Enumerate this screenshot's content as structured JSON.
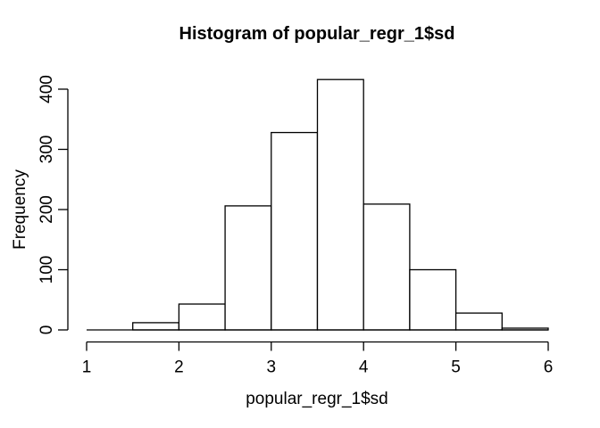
{
  "figure": {
    "background": "#ffffff"
  },
  "chart_data": {
    "type": "bar",
    "subtype": "histogram",
    "title": "Histogram of popular_regr_1$sd",
    "xlabel": "popular_regr_1$sd",
    "ylabel": "Frequency",
    "bin_breaks": [
      1,
      1.5,
      2,
      2.5,
      3,
      3.5,
      4,
      4.5,
      5,
      5.5,
      6
    ],
    "counts": [
      0,
      12,
      43,
      206,
      328,
      416,
      209,
      100,
      28,
      3
    ],
    "x_ticks": [
      "1",
      "2",
      "3",
      "4",
      "5",
      "6"
    ],
    "x_tick_values": [
      1,
      2,
      3,
      4,
      5,
      6
    ],
    "y_ticks": [
      "0",
      "100",
      "200",
      "300",
      "400"
    ],
    "y_tick_values": [
      0,
      100,
      200,
      300,
      400
    ],
    "xlim": [
      1,
      6
    ],
    "ylim": [
      0,
      420
    ],
    "grid": false,
    "legend": "none",
    "bar_fill": "#ffffff",
    "bar_stroke": "#000000",
    "axis_color": "#000000",
    "text_color": "#000000"
  }
}
